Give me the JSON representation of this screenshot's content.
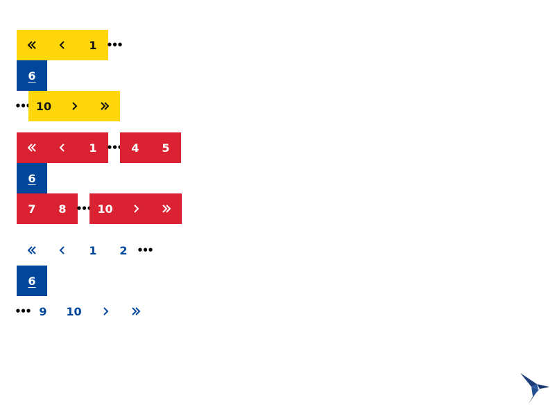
{
  "glyphs": {
    "ellipsis": "•••"
  },
  "icons": {
    "first": "double-chevron-left-icon",
    "prev": "chevron-left-icon",
    "next": "chevron-right-icon",
    "last": "double-chevron-right-icon"
  },
  "colors": {
    "yellow": "#ffd60a",
    "red": "#da2233",
    "blue": "#00479b",
    "white": "#ffffff"
  },
  "pagination_yellow": {
    "page_1": "1",
    "current": "6",
    "page_10": "10"
  },
  "pagination_red": {
    "page_1": "1",
    "page_4": "4",
    "page_5": "5",
    "current": "6",
    "page_7": "7",
    "page_8": "8",
    "page_10": "10"
  },
  "pagination_plain": {
    "page_1": "1",
    "page_2": "2",
    "current": "6",
    "page_9": "9",
    "page_10": "10"
  }
}
